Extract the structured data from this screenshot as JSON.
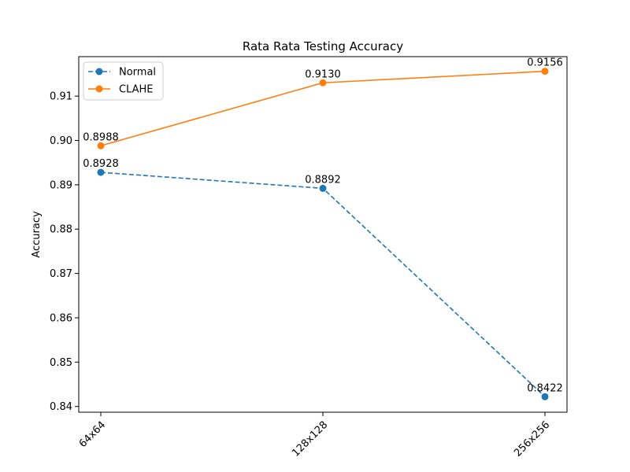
{
  "chart_data": {
    "type": "line",
    "title": "Rata Rata Testing Accuracy",
    "xlabel": "",
    "ylabel": "Accuracy",
    "categories": [
      "64x64",
      "128x128",
      "256x256"
    ],
    "ylim": [
      0.8387,
      0.9189
    ],
    "yticks": [
      0.84,
      0.85,
      0.86,
      0.87,
      0.88,
      0.89,
      0.9,
      0.91
    ],
    "ytick_labels": [
      "0.84",
      "0.85",
      "0.86",
      "0.87",
      "0.88",
      "0.89",
      "0.90",
      "0.91"
    ],
    "grid": false,
    "legend_position": "upper-left",
    "series": [
      {
        "name": "Normal",
        "values": [
          0.8928,
          0.8892,
          0.8422
        ],
        "labels": [
          "0.8928",
          "0.8892",
          "0.8422"
        ],
        "color": "#1f77b4",
        "line_style": "dashed",
        "marker": "circle"
      },
      {
        "name": "CLAHE",
        "values": [
          0.8988,
          0.913,
          0.9156
        ],
        "labels": [
          "0.8988",
          "0.9130",
          "0.9156"
        ],
        "color": "#ff7f0e",
        "line_style": "solid",
        "marker": "circle"
      }
    ]
  }
}
